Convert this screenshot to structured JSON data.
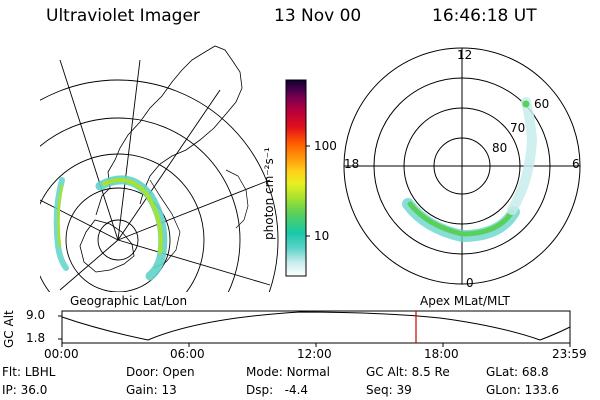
{
  "header": {
    "instrument": "Ultraviolet Imager",
    "date": "13 Nov 00",
    "time": "16:46:18 UT"
  },
  "panels": {
    "left_label": "Geographic Lat/Lon",
    "right_label": "Apex MLat/MLT"
  },
  "colorbar": {
    "unit_label": "photon cm⁻²s⁻¹",
    "ticks": [
      "100",
      "10"
    ],
    "colors": [
      "#ffffff",
      "#c8ecec",
      "#5fd3c9",
      "#18c8a8",
      "#5ad05a",
      "#a7e22e",
      "#e6f020",
      "#ffd21a",
      "#ff9a0a",
      "#ff5a00",
      "#e0101a",
      "#b8003c",
      "#7a0050",
      "#3c0048",
      "#10002a"
    ]
  },
  "polar": {
    "mlt_labels": [
      "12",
      "18",
      "6",
      "0"
    ],
    "lat_labels": [
      "60",
      "70",
      "80"
    ]
  },
  "timeline": {
    "y_label": "GC Alt",
    "y_ticks": [
      "9.0",
      "1.8"
    ],
    "x_ticks": [
      "00:00",
      "06:00",
      "12:00",
      "18:00",
      "23:59"
    ],
    "current_marker_color": "#d00000"
  },
  "info": {
    "row1": [
      {
        "k": "Flt:",
        "v": "LBHL"
      },
      {
        "k": "Door:",
        "v": "Open"
      },
      {
        "k": "Mode:",
        "v": "Normal"
      },
      {
        "k": "GC Alt:",
        "v": "8.5 Re"
      },
      {
        "k": "GLat:",
        "v": "68.8"
      }
    ],
    "row2": [
      {
        "k": "IP:",
        "v": "36.0"
      },
      {
        "k": "Gain:",
        "v": "13"
      },
      {
        "k": "Dsp:",
        "v": "-4.4"
      },
      {
        "k": "Seq:",
        "v": "39"
      },
      {
        "k": "GLon:",
        "v": "133.6"
      }
    ]
  }
}
